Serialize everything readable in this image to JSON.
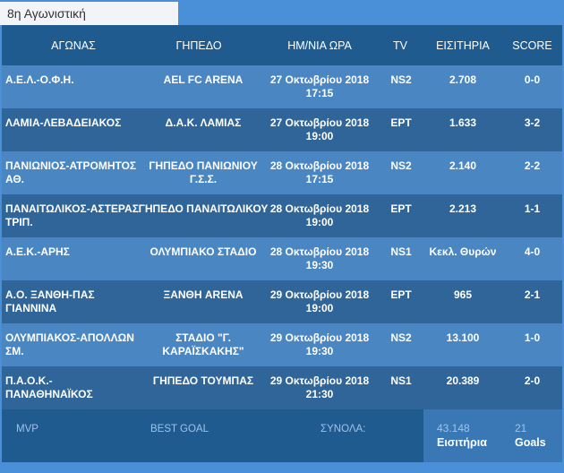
{
  "tab": {
    "label": "8η Αγωνιστική"
  },
  "headers": {
    "match": "ΑΓΩΝΑΣ",
    "venue": "ΓΗΠΕΔΟ",
    "datetime": "ΗΜ/ΝΙΑ ΩΡΑ",
    "tv": "TV",
    "tickets": "ΕΙΣΙΤΗΡΙΑ",
    "score": "SCORE"
  },
  "rows": [
    {
      "match": "Α.Ε.Λ.-Ο.Φ.Η.",
      "venue": "AEL FC ARENA",
      "datetime": "27 Οκτωβρίου 2018 17:15",
      "tv": "NS2",
      "tickets": "2.708",
      "score": "0-0"
    },
    {
      "match": "ΛΑΜΙΑ-ΛΕΒΑΔΕΙΑΚΟΣ",
      "venue": "Δ.Α.Κ. ΛΑΜΙΑΣ",
      "datetime": "27 Οκτωβρίου 2018 19:00",
      "tv": "ΕΡΤ",
      "tickets": "1.633",
      "score": "3-2"
    },
    {
      "match": "ΠΑΝΙΩΝΙΟΣ-ΑΤΡΟΜΗΤΟΣ ΑΘ.",
      "venue": "ΓΗΠΕΔΟ ΠΑΝΙΩΝΙΟΥ Γ.Σ.Σ.",
      "datetime": "28 Οκτωβρίου 2018 17:15",
      "tv": "NS2",
      "tickets": "2.140",
      "score": "2-2"
    },
    {
      "match": "ΠΑΝΑΙΤΩΛΙΚΟΣ-ΑΣΤΕΡΑΣ ΤΡΙΠ.",
      "venue": "ΓΗΠΕΔΟ ΠΑΝΑΙΤΩΛΙΚΟΥ",
      "datetime": "28 Οκτωβρίου 2018 19:00",
      "tv": "ΕΡΤ",
      "tickets": "2.213",
      "score": "1-1"
    },
    {
      "match": "Α.Ε.Κ.-ΑΡΗΣ",
      "venue": "ΟΛΥΜΠΙΑΚΟ ΣΤΑΔΙΟ",
      "datetime": "28 Οκτωβρίου 2018 19:30",
      "tv": "NS1",
      "tickets": "Κεκλ. Θυρών",
      "score": "4-0"
    },
    {
      "match": "Α.Ο. ΞΑΝΘΗ-ΠΑΣ ΓΙΑΝΝΙΝΑ",
      "venue": "ΞΑΝΘΗ ARENA",
      "datetime": "29 Οκτωβρίου 2018 19:00",
      "tv": "ΕΡΤ",
      "tickets": "965",
      "score": "2-1"
    },
    {
      "match": "ΟΛΥΜΠΙΑΚΟΣ-ΑΠΟΛΛΩΝ ΣΜ.",
      "venue": "ΣΤΑΔΙΟ \"Γ. ΚΑΡΑΪΣΚΑΚΗΣ\"",
      "datetime": "29 Οκτωβρίου 2018 19:30",
      "tv": "NS2",
      "tickets": "13.100",
      "score": "1-0"
    },
    {
      "match": "Π.Α.Ο.Κ.-ΠΑΝΑΘΗΝΑΪΚΟΣ",
      "venue": "ΓΗΠΕΔΟ ΤΟΥΜΠΑΣ",
      "datetime": "29 Οκτωβρίου 2018 21:30",
      "tv": "NS1",
      "tickets": "20.389",
      "score": "2-0"
    }
  ],
  "footer": {
    "mvp": "MVP",
    "best_goal": "BEST GOAL",
    "totals_label": "ΣΥΝΟΛΑ:",
    "tickets_total": "43.148",
    "tickets_label": "Εισιτήρια",
    "goals_total": "21",
    "goals_label": "Goals"
  },
  "colors": {
    "background": "#4a90d9",
    "panel": "#1f5b8f",
    "row_light": "#4a86c2",
    "row_dark": "#2f6598"
  }
}
